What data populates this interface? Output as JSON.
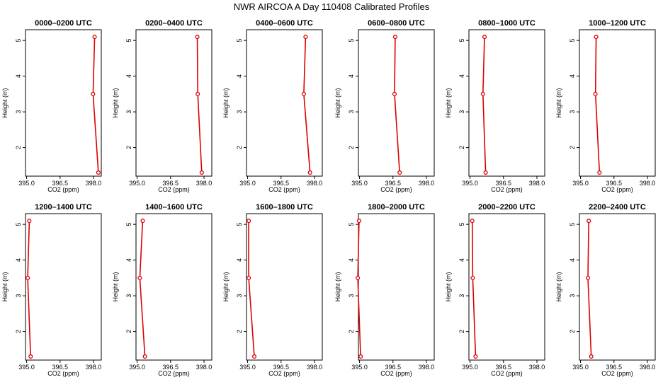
{
  "title": "NWR AIRCOA A  Day 110408  Calibrated Profiles",
  "colors": {
    "series": "#dd0000",
    "axis": "#000000",
    "background": "#ffffff"
  },
  "chart_data": [
    {
      "type": "line",
      "title": "0000–0200 UTC",
      "xlabel": "CO2 (ppm)",
      "ylabel": "Height (m)",
      "xlim": [
        394.95,
        398.35
      ],
      "ylim": [
        1.2,
        5.3
      ],
      "xticks": [
        395.0,
        396.5,
        398.0
      ],
      "xtick_labels": [
        "395.0",
        "396.5",
        "398.0"
      ],
      "yticks": [
        2,
        3,
        4,
        5
      ],
      "grid": false,
      "points": [
        {
          "x": 398.05,
          "y": 5.1
        },
        {
          "x": 397.98,
          "y": 3.5
        },
        {
          "x": 398.22,
          "y": 1.3
        }
      ]
    },
    {
      "type": "line",
      "title": "0200–0400 UTC",
      "xlabel": "CO2 (ppm)",
      "ylabel": "Height (m)",
      "xlim": [
        394.95,
        398.35
      ],
      "ylim": [
        1.2,
        5.3
      ],
      "xticks": [
        395.0,
        396.5,
        398.0
      ],
      "xtick_labels": [
        "395.0",
        "396.5",
        "398.0"
      ],
      "yticks": [
        2,
        3,
        4,
        5
      ],
      "grid": false,
      "points": [
        {
          "x": 397.7,
          "y": 5.1
        },
        {
          "x": 397.72,
          "y": 3.5
        },
        {
          "x": 397.9,
          "y": 1.3
        }
      ]
    },
    {
      "type": "line",
      "title": "0400–0600 UTC",
      "xlabel": "CO2 (ppm)",
      "ylabel": "Height (m)",
      "xlim": [
        394.95,
        398.35
      ],
      "ylim": [
        1.2,
        5.3
      ],
      "xticks": [
        395.0,
        396.5,
        398.0
      ],
      "xtick_labels": [
        "395.0",
        "396.5",
        "398.0"
      ],
      "yticks": [
        2,
        3,
        4,
        5
      ],
      "grid": false,
      "points": [
        {
          "x": 397.6,
          "y": 5.1
        },
        {
          "x": 397.52,
          "y": 3.5
        },
        {
          "x": 397.8,
          "y": 1.3
        }
      ]
    },
    {
      "type": "line",
      "title": "0600–0800 UTC",
      "xlabel": "CO2 (ppm)",
      "ylabel": "Height (m)",
      "xlim": [
        394.95,
        398.35
      ],
      "ylim": [
        1.2,
        5.3
      ],
      "xticks": [
        395.0,
        396.5,
        398.0
      ],
      "xtick_labels": [
        "395.0",
        "396.5",
        "398.0"
      ],
      "yticks": [
        2,
        3,
        4,
        5
      ],
      "grid": false,
      "points": [
        {
          "x": 396.6,
          "y": 5.1
        },
        {
          "x": 396.57,
          "y": 3.5
        },
        {
          "x": 396.8,
          "y": 1.3
        }
      ]
    },
    {
      "type": "line",
      "title": "0800–1000 UTC",
      "xlabel": "CO2 (ppm)",
      "ylabel": "Height (m)",
      "xlim": [
        394.95,
        398.35
      ],
      "ylim": [
        1.2,
        5.3
      ],
      "xticks": [
        395.0,
        396.5,
        398.0
      ],
      "xtick_labels": [
        "395.0",
        "396.5",
        "398.0"
      ],
      "yticks": [
        2,
        3,
        4,
        5
      ],
      "grid": false,
      "points": [
        {
          "x": 395.65,
          "y": 5.1
        },
        {
          "x": 395.58,
          "y": 3.5
        },
        {
          "x": 395.7,
          "y": 1.3
        }
      ]
    },
    {
      "type": "line",
      "title": "1000–1200 UTC",
      "xlabel": "CO2 (ppm)",
      "ylabel": "Height (m)",
      "xlim": [
        394.95,
        398.35
      ],
      "ylim": [
        1.2,
        5.3
      ],
      "xticks": [
        395.0,
        396.5,
        398.0
      ],
      "xtick_labels": [
        "395.0",
        "396.5",
        "398.0"
      ],
      "yticks": [
        2,
        3,
        4,
        5
      ],
      "grid": false,
      "points": [
        {
          "x": 395.7,
          "y": 5.1
        },
        {
          "x": 395.67,
          "y": 3.5
        },
        {
          "x": 395.85,
          "y": 1.3
        }
      ]
    },
    {
      "type": "line",
      "title": "1200–1400 UTC",
      "xlabel": "CO2 (ppm)",
      "ylabel": "Height (m)",
      "xlim": [
        394.95,
        398.35
      ],
      "ylim": [
        1.2,
        5.3
      ],
      "xticks": [
        395.0,
        396.5,
        398.0
      ],
      "xtick_labels": [
        "395.0",
        "396.5",
        "398.0"
      ],
      "yticks": [
        2,
        3,
        4,
        5
      ],
      "grid": false,
      "points": [
        {
          "x": 395.12,
          "y": 5.1
        },
        {
          "x": 395.05,
          "y": 3.5
        },
        {
          "x": 395.18,
          "y": 1.3
        }
      ]
    },
    {
      "type": "line",
      "title": "1400–1600 UTC",
      "xlabel": "CO2 (ppm)",
      "ylabel": "Height (m)",
      "xlim": [
        394.95,
        398.35
      ],
      "ylim": [
        1.2,
        5.3
      ],
      "xticks": [
        395.0,
        396.5,
        398.0
      ],
      "xtick_labels": [
        "395.0",
        "396.5",
        "398.0"
      ],
      "yticks": [
        2,
        3,
        4,
        5
      ],
      "grid": false,
      "points": [
        {
          "x": 395.25,
          "y": 5.1
        },
        {
          "x": 395.12,
          "y": 3.5
        },
        {
          "x": 395.35,
          "y": 1.3
        }
      ]
    },
    {
      "type": "line",
      "title": "1600–1800 UTC",
      "xlabel": "CO2 (ppm)",
      "ylabel": "Height (m)",
      "xlim": [
        394.95,
        398.35
      ],
      "ylim": [
        1.2,
        5.3
      ],
      "xticks": [
        395.0,
        396.5,
        398.0
      ],
      "xtick_labels": [
        "395.0",
        "396.5",
        "398.0"
      ],
      "yticks": [
        2,
        3,
        4,
        5
      ],
      "grid": false,
      "points": [
        {
          "x": 395.05,
          "y": 5.1
        },
        {
          "x": 395.05,
          "y": 3.5
        },
        {
          "x": 395.3,
          "y": 1.3
        }
      ]
    },
    {
      "type": "line",
      "title": "1800–2000 UTC",
      "xlabel": "CO2 (ppm)",
      "ylabel": "Height (m)",
      "xlim": [
        394.95,
        398.35
      ],
      "ylim": [
        1.2,
        5.3
      ],
      "xticks": [
        395.0,
        396.5,
        398.0
      ],
      "xtick_labels": [
        "395.0",
        "396.5",
        "398.0"
      ],
      "yticks": [
        2,
        3,
        4,
        5
      ],
      "grid": false,
      "points": [
        {
          "x": 394.98,
          "y": 5.1
        },
        {
          "x": 394.92,
          "y": 3.5
        },
        {
          "x": 395.05,
          "y": 1.3
        }
      ]
    },
    {
      "type": "line",
      "title": "2000–2200 UTC",
      "xlabel": "CO2 (ppm)",
      "ylabel": "Height (m)",
      "xlim": [
        394.95,
        398.35
      ],
      "ylim": [
        1.2,
        5.3
      ],
      "xticks": [
        395.0,
        396.5,
        398.0
      ],
      "xtick_labels": [
        "395.0",
        "396.5",
        "398.0"
      ],
      "yticks": [
        2,
        3,
        4,
        5
      ],
      "grid": false,
      "points": [
        {
          "x": 395.1,
          "y": 5.1
        },
        {
          "x": 395.12,
          "y": 3.5
        },
        {
          "x": 395.25,
          "y": 1.3
        }
      ]
    },
    {
      "type": "line",
      "title": "2200–2400 UTC",
      "xlabel": "CO2 (ppm)",
      "ylabel": "Height (m)",
      "xlim": [
        394.95,
        398.35
      ],
      "ylim": [
        1.2,
        5.3
      ],
      "xticks": [
        395.0,
        396.5,
        398.0
      ],
      "xtick_labels": [
        "395.0",
        "396.5",
        "398.0"
      ],
      "yticks": [
        2,
        3,
        4,
        5
      ],
      "grid": false,
      "points": [
        {
          "x": 395.37,
          "y": 5.1
        },
        {
          "x": 395.33,
          "y": 3.5
        },
        {
          "x": 395.48,
          "y": 1.3
        }
      ]
    }
  ]
}
